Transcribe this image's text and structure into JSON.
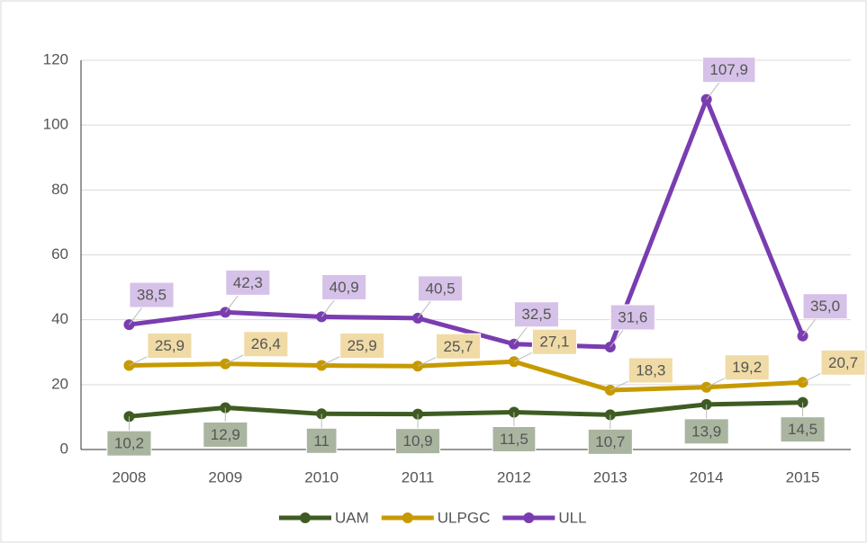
{
  "chart_data": {
    "type": "line",
    "categories": [
      "2008",
      "2009",
      "2010",
      "2011",
      "2012",
      "2013",
      "2014",
      "2015"
    ],
    "series": [
      {
        "name": "UAM",
        "color": "#3e5c22",
        "label_fill": "#aab5a0",
        "values": [
          10.2,
          12.9,
          11,
          10.9,
          11.5,
          10.7,
          13.9,
          14.5
        ],
        "value_labels": [
          "10,2",
          "12,9",
          "11",
          "10,9",
          "11,5",
          "10,7",
          "13,9",
          "14,5"
        ]
      },
      {
        "name": "ULPGC",
        "color": "#c79a00",
        "label_fill": "#f0dba6",
        "values": [
          25.9,
          26.4,
          25.9,
          25.7,
          27.1,
          18.3,
          19.2,
          20.7
        ],
        "value_labels": [
          "25,9",
          "26,4",
          "25,9",
          "25,7",
          "27,1",
          "18,3",
          "19,2",
          "20,7"
        ]
      },
      {
        "name": "ULL",
        "color": "#7a3db0",
        "label_fill": "#d6c2e8",
        "values": [
          38.5,
          42.3,
          40.9,
          40.5,
          32.5,
          31.6,
          107.9,
          35.0
        ],
        "value_labels": [
          "38,5",
          "42,3",
          "40,9",
          "40,5",
          "32,5",
          "31,6",
          "107,9",
          "35,0"
        ]
      }
    ],
    "ylim": [
      0,
      120
    ],
    "yticks": [
      0,
      20,
      40,
      60,
      80,
      100,
      120
    ],
    "grid": true,
    "legend": "bottom"
  }
}
